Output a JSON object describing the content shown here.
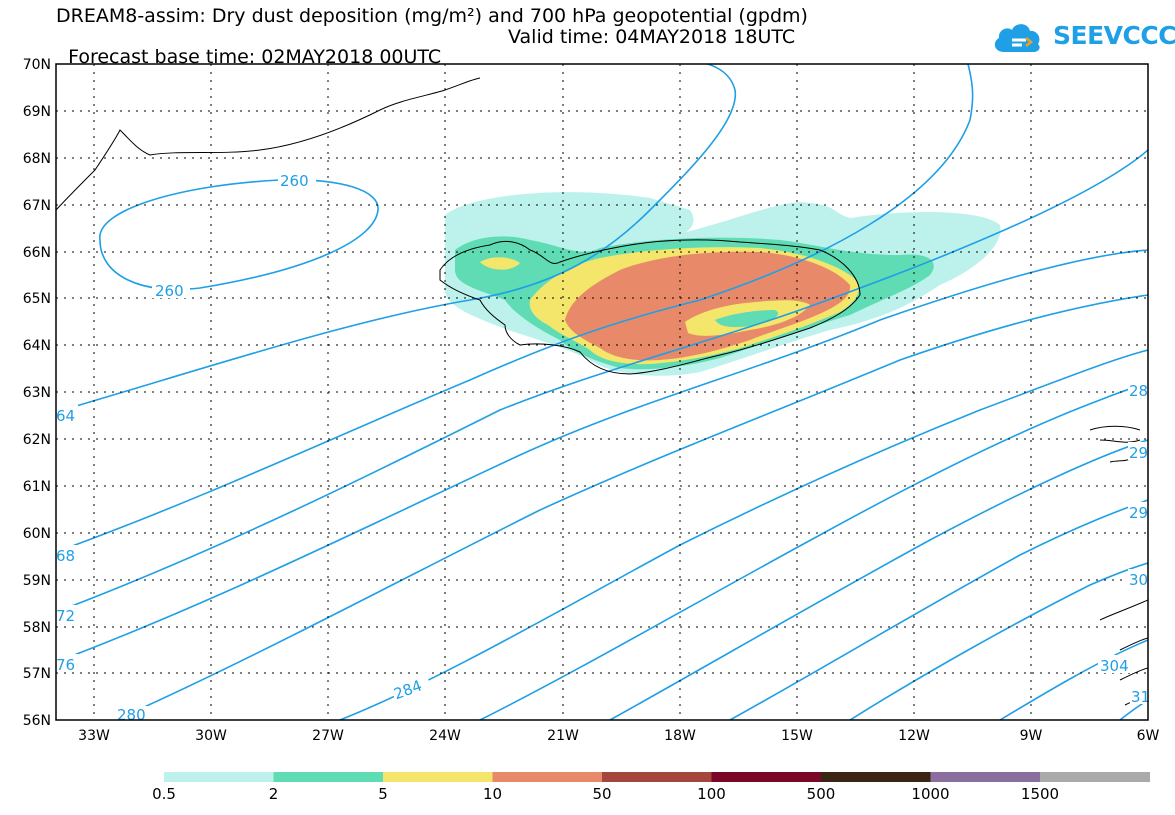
{
  "title_line1": "DREAM8-assim: Dry dust deposition (mg/m²) and 700 hPa geopotential (gpdm)",
  "title_line2_base": "Forecast base time: 02MAY2018 00UTC",
  "title_line2_valid": "Valid time: 04MAY2018 18UTC",
  "logo": {
    "text": "SEEVCCC",
    "icon": "cloud-icon",
    "color": "#1f9fe6"
  },
  "map": {
    "lon_range": [
      -34.3,
      -6
    ],
    "lat_range": [
      56,
      70
    ],
    "lat_labels": [
      "70N",
      "69N",
      "68N",
      "67N",
      "66N",
      "65N",
      "64N",
      "63N",
      "62N",
      "61N",
      "60N",
      "59N",
      "58N",
      "57N",
      "56N"
    ],
    "lon_labels": [
      "33W",
      "30W",
      "27W",
      "24W",
      "21W",
      "18W",
      "15W",
      "12W",
      "9W",
      "6W"
    ],
    "contour_color": "#1f9fe6",
    "contour_labels": [
      {
        "text": "260",
        "at": "upper-closed-low"
      },
      {
        "text": "260",
        "at": "lower-closed-low"
      },
      {
        "text": "64",
        "at": "left-edge"
      },
      {
        "text": "68",
        "at": "left-edge"
      },
      {
        "text": "72",
        "at": "left-edge"
      },
      {
        "text": "76",
        "at": "left-edge"
      },
      {
        "text": "280",
        "at": "bottom-left"
      },
      {
        "text": "284",
        "at": "bottom"
      },
      {
        "text": "28",
        "at": "right-edge"
      },
      {
        "text": "29",
        "at": "right-edge"
      },
      {
        "text": "29",
        "at": "right-edge"
      },
      {
        "text": "30",
        "at": "right-edge"
      },
      {
        "text": "304",
        "at": "bottom-right"
      },
      {
        "text": "31",
        "at": "bottom-right"
      }
    ]
  },
  "legend": {
    "colors": [
      "#bdf2ec",
      "#5fdcb4",
      "#f4e66b",
      "#e8896a",
      "#a4463c",
      "#7a0726",
      "#3b2414",
      "#8a6e9e",
      "#aaaaaa"
    ],
    "labels": [
      "0.5",
      "2",
      "5",
      "10",
      "50",
      "100",
      "500",
      "1000",
      "1500"
    ]
  }
}
